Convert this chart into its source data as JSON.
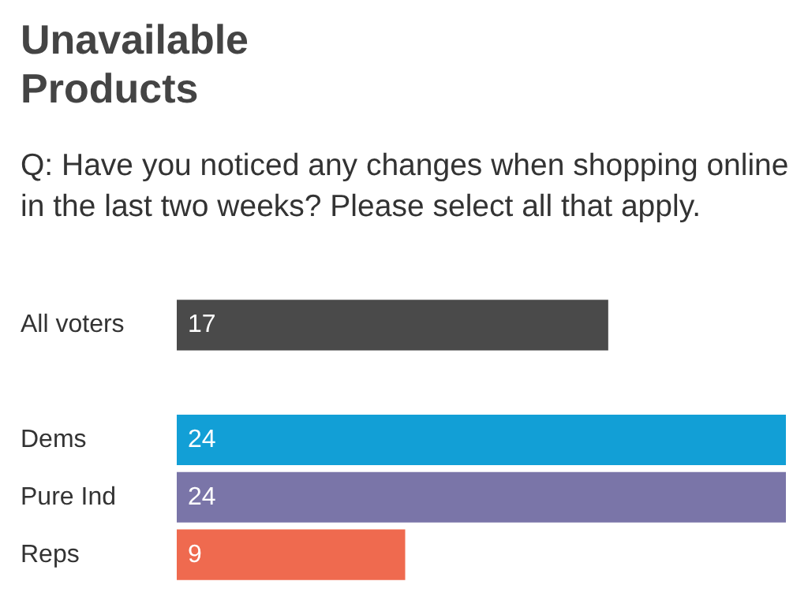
{
  "chart_data": {
    "type": "bar",
    "orientation": "horizontal",
    "title": "Unavailable Products",
    "subtitle": "Q: Have you noticed any changes when shopping online in the last two weeks? Please select all that apply.",
    "categories": [
      "All voters",
      null,
      "Dems",
      "Pure Ind",
      "Reps"
    ],
    "values": [
      17,
      null,
      24,
      24,
      9
    ],
    "colors": [
      "#4a4a4a",
      "#888888",
      "#129fd6",
      "#7a75a8",
      "#ef6a4f"
    ],
    "xlim": [
      0,
      24
    ],
    "data_labels": true
  }
}
